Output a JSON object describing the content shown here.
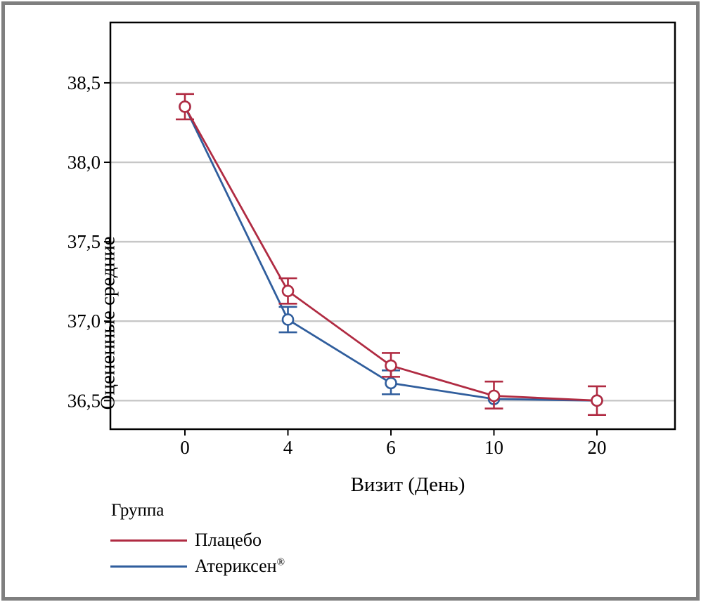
{
  "window": {
    "background": "#ffffff",
    "border_color": "#7f7f7f"
  },
  "chart_data": {
    "type": "line",
    "title": "",
    "xlabel": "Визит (День)",
    "ylabel": "Оцененные средние",
    "categories": [
      "0",
      "4",
      "6",
      "10",
      "20"
    ],
    "x_values": [
      0,
      4,
      6,
      10,
      20
    ],
    "x_axis_spacing": "categorical-equal",
    "ytick_labels": [
      "36,5",
      "37,0",
      "37,5",
      "38,0",
      "38,5"
    ],
    "ytick_values": [
      36.5,
      37.0,
      37.5,
      38.0,
      38.5
    ],
    "ylim": [
      36.32,
      38.88
    ],
    "grid": "horizontal",
    "marker": "open-circle",
    "error_bars": true,
    "legend": {
      "title": "Группа",
      "position": "bottom-left"
    },
    "series": [
      {
        "name": "Плацебо",
        "label": "Плацебо",
        "label_sup": "",
        "color": "#B02B42",
        "values": [
          38.35,
          37.19,
          36.72,
          36.53,
          36.5
        ],
        "err_low": [
          38.27,
          37.11,
          36.65,
          36.45,
          36.41
        ],
        "err_high": [
          38.43,
          37.27,
          36.8,
          36.62,
          36.59
        ]
      },
      {
        "name": "Атериксен®",
        "label": "Атериксен",
        "label_sup": "®",
        "color": "#305E9D",
        "values": [
          38.35,
          37.01,
          36.61,
          36.51,
          36.5
        ],
        "err_low": [
          null,
          36.93,
          36.54,
          null,
          null
        ],
        "err_high": [
          null,
          37.09,
          36.69,
          null,
          null
        ]
      }
    ],
    "colors": {
      "gridline": "#C7C7C7",
      "axis": "#000000",
      "marker_fill": "#FFFFFF"
    }
  }
}
